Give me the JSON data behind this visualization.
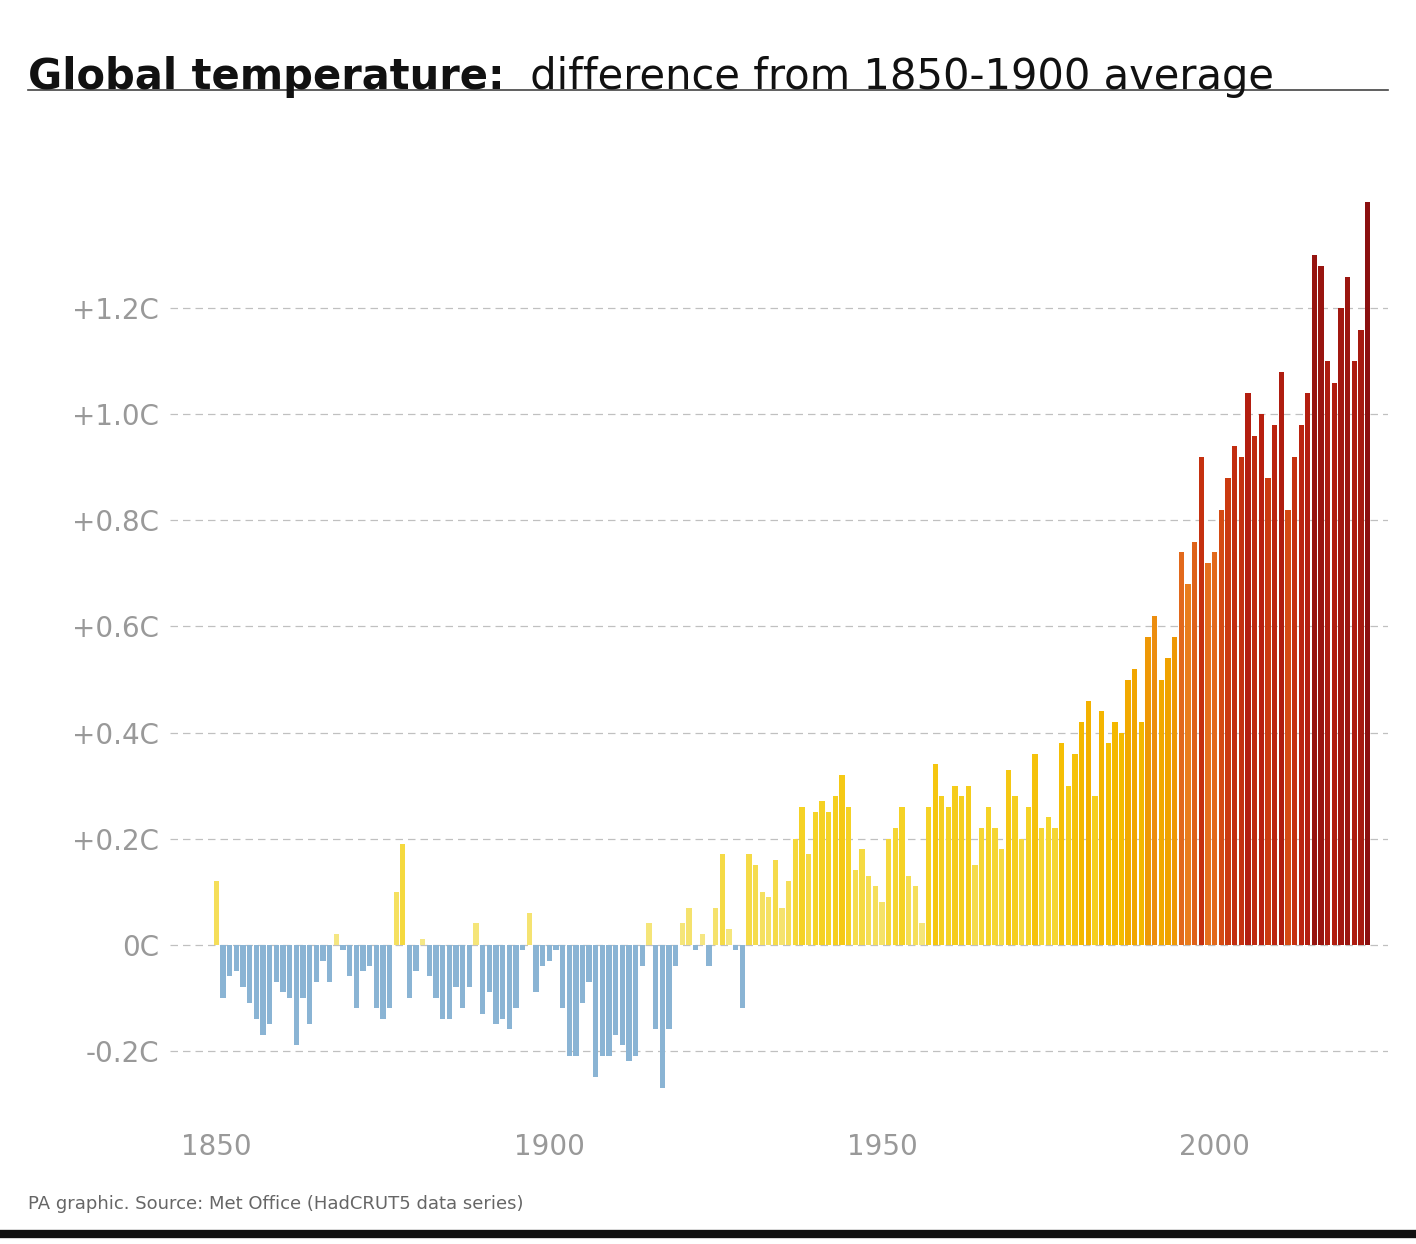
{
  "title_bold": "Global temperature:",
  "title_normal": " difference from 1850-1900 average",
  "source_text": "PA graphic. Source: Met Office (HadCRUT5 data series)",
  "years": [
    1850,
    1851,
    1852,
    1853,
    1854,
    1855,
    1856,
    1857,
    1858,
    1859,
    1860,
    1861,
    1862,
    1863,
    1864,
    1865,
    1866,
    1867,
    1868,
    1869,
    1870,
    1871,
    1872,
    1873,
    1874,
    1875,
    1876,
    1877,
    1878,
    1879,
    1880,
    1881,
    1882,
    1883,
    1884,
    1885,
    1886,
    1887,
    1888,
    1889,
    1890,
    1891,
    1892,
    1893,
    1894,
    1895,
    1896,
    1897,
    1898,
    1899,
    1900,
    1901,
    1902,
    1903,
    1904,
    1905,
    1906,
    1907,
    1908,
    1909,
    1910,
    1911,
    1912,
    1913,
    1914,
    1915,
    1916,
    1917,
    1918,
    1919,
    1920,
    1921,
    1922,
    1923,
    1924,
    1925,
    1926,
    1927,
    1928,
    1929,
    1930,
    1931,
    1932,
    1933,
    1934,
    1935,
    1936,
    1937,
    1938,
    1939,
    1940,
    1941,
    1942,
    1943,
    1944,
    1945,
    1946,
    1947,
    1948,
    1949,
    1950,
    1951,
    1952,
    1953,
    1954,
    1955,
    1956,
    1957,
    1958,
    1959,
    1960,
    1961,
    1962,
    1963,
    1964,
    1965,
    1966,
    1967,
    1968,
    1969,
    1970,
    1971,
    1972,
    1973,
    1974,
    1975,
    1976,
    1977,
    1978,
    1979,
    1980,
    1981,
    1982,
    1983,
    1984,
    1985,
    1986,
    1987,
    1988,
    1989,
    1990,
    1991,
    1992,
    1993,
    1994,
    1995,
    1996,
    1997,
    1998,
    1999,
    2000,
    2001,
    2002,
    2003,
    2004,
    2005,
    2006,
    2007,
    2008,
    2009,
    2010,
    2011,
    2012,
    2013,
    2014,
    2015,
    2016,
    2017,
    2018,
    2019,
    2020,
    2021,
    2022,
    2023
  ],
  "anomalies": [
    0.12,
    -0.1,
    -0.06,
    -0.05,
    -0.08,
    -0.11,
    -0.14,
    -0.17,
    -0.15,
    -0.07,
    -0.09,
    -0.1,
    -0.19,
    -0.1,
    -0.15,
    -0.07,
    -0.03,
    -0.07,
    0.02,
    -0.01,
    -0.06,
    -0.12,
    -0.05,
    -0.04,
    -0.12,
    -0.14,
    -0.12,
    0.1,
    0.19,
    -0.1,
    -0.05,
    0.01,
    -0.06,
    -0.1,
    -0.14,
    -0.14,
    -0.08,
    -0.12,
    -0.08,
    0.04,
    -0.13,
    -0.09,
    -0.15,
    -0.14,
    -0.16,
    -0.12,
    -0.01,
    0.06,
    -0.09,
    -0.04,
    -0.03,
    -0.01,
    -0.12,
    -0.21,
    -0.21,
    -0.11,
    -0.07,
    -0.25,
    -0.21,
    -0.21,
    -0.17,
    -0.19,
    -0.22,
    -0.21,
    -0.04,
    0.04,
    -0.16,
    -0.27,
    -0.16,
    -0.04,
    0.04,
    0.07,
    -0.01,
    0.02,
    -0.04,
    0.07,
    0.17,
    0.03,
    -0.01,
    -0.12,
    0.17,
    0.15,
    0.1,
    0.09,
    0.16,
    0.07,
    0.12,
    0.2,
    0.26,
    0.17,
    0.25,
    0.27,
    0.25,
    0.28,
    0.32,
    0.26,
    0.14,
    0.18,
    0.13,
    0.11,
    0.08,
    0.2,
    0.22,
    0.26,
    0.13,
    0.11,
    0.04,
    0.26,
    0.34,
    0.28,
    0.26,
    0.3,
    0.28,
    0.3,
    0.15,
    0.22,
    0.26,
    0.22,
    0.18,
    0.33,
    0.28,
    0.2,
    0.26,
    0.36,
    0.22,
    0.24,
    0.22,
    0.38,
    0.3,
    0.36,
    0.42,
    0.46,
    0.28,
    0.44,
    0.38,
    0.42,
    0.4,
    0.5,
    0.52,
    0.42,
    0.58,
    0.62,
    0.5,
    0.54,
    0.58,
    0.74,
    0.68,
    0.76,
    0.92,
    0.72,
    0.74,
    0.82,
    0.88,
    0.94,
    0.92,
    1.04,
    0.96,
    1.0,
    0.88,
    0.98,
    1.08,
    0.82,
    0.92,
    0.98,
    1.04,
    1.3,
    1.28,
    1.1,
    1.06,
    1.2,
    1.26,
    1.1,
    1.16,
    1.4
  ],
  "yticks": [
    -0.2,
    0.0,
    0.2,
    0.4,
    0.6,
    0.8,
    1.0,
    1.2
  ],
  "ytick_labels": [
    "-0.2C",
    "0C",
    "+0.2C",
    "+0.4C",
    "+0.6C",
    "+0.8C",
    "+1.0C",
    "+1.2C"
  ],
  "xticks": [
    1850,
    1900,
    1950,
    2000
  ],
  "ylim": [
    -0.33,
    1.5
  ],
  "xlim": [
    1843,
    2026
  ],
  "bg_color": "#ffffff",
  "grid_color": "#c0c0c0",
  "title_color": "#111111",
  "tick_label_color": "#999999",
  "bar_width": 0.8,
  "neg_color": "#8ab4d4",
  "color_stops_val": [
    0.0,
    0.1,
    0.25,
    0.4,
    0.55,
    0.7,
    0.85,
    1.0,
    1.4
  ],
  "color_stops_hex": [
    "#f5e88a",
    "#f5e060",
    "#f5d428",
    "#f5bc00",
    "#f0a000",
    "#e87820",
    "#d04010",
    "#b82010",
    "#8b1010"
  ]
}
